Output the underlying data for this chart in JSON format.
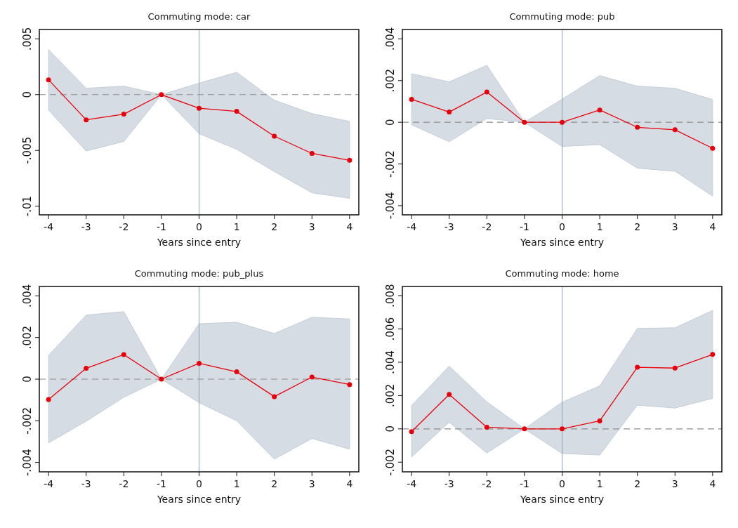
{
  "chart_data": [
    {
      "type": "line",
      "title": "Commuting mode: car",
      "xlabel": "Years since entry",
      "x": [
        -4,
        -3,
        -2,
        -1,
        0,
        1,
        2,
        3,
        4
      ],
      "xlim": [
        -4.245,
        4.245
      ],
      "xticks": [
        -4,
        -3,
        -2,
        -1,
        0,
        1,
        2,
        3,
        4
      ],
      "ylim": [
        -0.01078,
        0.00584
      ],
      "yticks": [
        {
          "value": -0.01,
          "label": "-.01"
        },
        {
          "value": -0.005,
          "label": "-.005"
        },
        {
          "value": 0,
          "label": "0"
        },
        {
          "value": 0.005,
          "label": ".005"
        }
      ],
      "marker": "circle",
      "series": [
        {
          "color": "#e8000b",
          "values": [
            0.00133,
            -0.00226,
            -0.00175,
            0,
            -0.00122,
            -0.0015,
            -0.00373,
            -0.00527,
            -0.00589
          ],
          "lower": [
            -0.0014,
            -0.00506,
            -0.0042,
            0,
            -0.0035,
            -0.0049,
            -0.0069,
            -0.0088,
            -0.0093
          ],
          "upper": [
            0.00403,
            0.00057,
            0.00076,
            0,
            0.00103,
            0.002,
            -0.0005,
            -0.0017,
            -0.0024
          ]
        }
      ],
      "ref_lines": [
        {
          "axis": "y",
          "value": 0,
          "color": "#8c8c8c",
          "line_style": "dashed"
        },
        {
          "axis": "x",
          "value": 0,
          "color": "#8ba0b4",
          "line_style": "solid"
        }
      ]
    },
    {
      "type": "line",
      "title": "Commuting mode: pub",
      "xlabel": "Years since entry",
      "x": [
        -4,
        -3,
        -2,
        -1,
        0,
        1,
        2,
        3,
        4
      ],
      "xlim": [
        -4.245,
        4.245
      ],
      "xticks": [
        -4,
        -3,
        -2,
        -1,
        0,
        1,
        2,
        3,
        4
      ],
      "ylim": [
        -0.00444,
        0.00445
      ],
      "yticks": [
        {
          "value": -0.004,
          "label": "-.004"
        },
        {
          "value": -0.002,
          "label": "-.002"
        },
        {
          "value": 0,
          "label": "0"
        },
        {
          "value": 0.002,
          "label": ".002"
        },
        {
          "value": 0.004,
          "label": ".004"
        }
      ],
      "marker": "circle",
      "series": [
        {
          "color": "#e8000b",
          "values": [
            0.0011,
            0.00049,
            0.00145,
            0,
            0,
            0.00059,
            -0.00024,
            -0.00036,
            -0.00125
          ],
          "lower": [
            -0.00012,
            -0.00093,
            0.00018,
            0,
            -0.00116,
            -0.00107,
            -0.0022,
            -0.00235,
            -0.00354
          ],
          "upper": [
            0.00233,
            0.00194,
            0.00273,
            0,
            0.00111,
            0.00224,
            0.00173,
            0.00163,
            0.00109
          ]
        }
      ],
      "ref_lines": [
        {
          "axis": "y",
          "value": 0,
          "color": "#8c8c8c",
          "line_style": "dashed"
        },
        {
          "axis": "x",
          "value": 0,
          "color": "#8ba0b4",
          "line_style": "solid"
        }
      ]
    },
    {
      "type": "line",
      "title": "Commuting mode: pub_plus",
      "xlabel": "Years since entry",
      "x": [
        -4,
        -3,
        -2,
        -1,
        0,
        1,
        2,
        3,
        4
      ],
      "xlim": [
        -4.245,
        4.245
      ],
      "xticks": [
        -4,
        -3,
        -2,
        -1,
        0,
        1,
        2,
        3,
        4
      ],
      "ylim": [
        -0.00445,
        0.00445
      ],
      "yticks": [
        {
          "value": -0.004,
          "label": "-.004"
        },
        {
          "value": -0.002,
          "label": "-.002"
        },
        {
          "value": 0,
          "label": "0"
        },
        {
          "value": 0.002,
          "label": ".002"
        },
        {
          "value": 0.004,
          "label": ".004"
        }
      ],
      "marker": "circle",
      "series": [
        {
          "color": "#e8000b",
          "values": [
            -0.00098,
            0.00052,
            0.00118,
            0,
            0.00076,
            0.00035,
            -0.00084,
            0.0001,
            -0.00026
          ],
          "lower": [
            -0.00306,
            -0.00202,
            -0.00087,
            0,
            -0.00113,
            -0.002,
            -0.00384,
            -0.00285,
            -0.00336
          ],
          "upper": [
            0.00114,
            0.00308,
            0.00324,
            0,
            0.00266,
            0.00273,
            0.00219,
            0.00297,
            0.00289
          ]
        }
      ],
      "ref_lines": [
        {
          "axis": "y",
          "value": 0,
          "color": "#8c8c8c",
          "line_style": "dashed"
        },
        {
          "axis": "x",
          "value": 0,
          "color": "#8ba0b4",
          "line_style": "solid"
        }
      ]
    },
    {
      "type": "line",
      "title": "Commuting mode: home",
      "xlabel": "Years since entry",
      "x": [
        -4,
        -3,
        -2,
        -1,
        0,
        1,
        2,
        3,
        4
      ],
      "xlim": [
        -4.245,
        4.245
      ],
      "xticks": [
        -4,
        -3,
        -2,
        -1,
        0,
        1,
        2,
        3,
        4
      ],
      "ylim": [
        -0.00258,
        0.00855
      ],
      "yticks": [
        {
          "value": -0.002,
          "label": "-.002"
        },
        {
          "value": 0,
          "label": "0"
        },
        {
          "value": 0.002,
          "label": ".002"
        },
        {
          "value": 0.004,
          "label": ".004"
        },
        {
          "value": 0.006,
          "label": ".006"
        },
        {
          "value": 0.008,
          "label": ".008"
        }
      ],
      "marker": "circle",
      "series": [
        {
          "color": "#e8000b",
          "values": [
            -0.00017,
            0.00207,
            0.0001,
            0,
            0,
            0.00048,
            0.0037,
            0.00365,
            0.00447
          ],
          "lower": [
            -0.00169,
            0.0004,
            -0.00145,
            0,
            -0.00148,
            -0.00157,
            0.00142,
            0.00125,
            0.00183
          ],
          "upper": [
            0.0014,
            0.00377,
            0.00162,
            0,
            0.0016,
            0.00258,
            0.00603,
            0.00607,
            0.00711
          ]
        }
      ],
      "ref_lines": [
        {
          "axis": "y",
          "value": 0,
          "color": "#8c8c8c",
          "line_style": "dashed"
        },
        {
          "axis": "x",
          "value": 0,
          "color": "#8ba0b4",
          "line_style": "solid"
        }
      ]
    }
  ]
}
